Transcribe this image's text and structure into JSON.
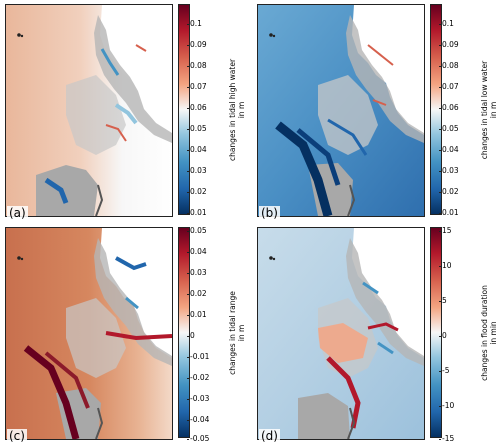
{
  "panels": [
    {
      "letter": "(a)",
      "colorbar_label_line1": "changes in tidal high water",
      "colorbar_label_line2": "in m",
      "ticks": [
        "0.1",
        "0.09",
        "0.08",
        "0.07",
        "0.06",
        "0.05",
        "0.04",
        "0.03",
        "0.02",
        "0.01"
      ],
      "tick_values": [
        0.1,
        0.09,
        0.08,
        0.07,
        0.06,
        0.05,
        0.04,
        0.03,
        0.02,
        0.01
      ],
      "range": [
        0.01,
        0.11
      ],
      "colormap": "diverging blue-white-red",
      "dominant_field": "orange-red offshore, white/blue nearshore"
    },
    {
      "letter": "(b)",
      "colorbar_label_line1": "changes in tidal low water",
      "colorbar_label_line2": "in m",
      "ticks": [
        "0.1",
        "0.09",
        "0.08",
        "0.07",
        "0.06",
        "0.05",
        "0.04",
        "0.03",
        "0.02",
        "0.01"
      ],
      "tick_values": [
        0.1,
        0.09,
        0.08,
        0.07,
        0.06,
        0.05,
        0.04,
        0.03,
        0.02,
        0.01
      ],
      "range": [
        0.01,
        0.11
      ],
      "colormap": "diverging blue-white-red",
      "dominant_field": "blue offshore, dark blue channels"
    },
    {
      "letter": "(c)",
      "colorbar_label_line1": "changes in tidal range",
      "colorbar_label_line2": "in m",
      "ticks": [
        "0.05",
        "0.04",
        "0.03",
        "0.02",
        "0.01",
        "0",
        "-0.01",
        "-0.02",
        "-0.03",
        "-0.04",
        "-0.05"
      ],
      "tick_values": [
        0.05,
        0.04,
        0.03,
        0.02,
        0.01,
        0,
        -0.01,
        -0.02,
        -0.03,
        -0.04,
        -0.05
      ],
      "range": [
        -0.05,
        0.05
      ],
      "colormap": "diverging blue-white-red",
      "dominant_field": "orange-red offshore, dark red channels"
    },
    {
      "letter": "(d)",
      "colorbar_label_line1": "changes in flood duration",
      "colorbar_label_line2": "in min",
      "ticks": [
        "15",
        "10",
        "5",
        "0",
        "-5",
        "-10",
        "-15"
      ],
      "tick_values": [
        15,
        10,
        5,
        0,
        -5,
        -10,
        -15
      ],
      "range": [
        -15,
        15
      ],
      "colormap": "diverging blue-white-red",
      "dominant_field": "light blue offshore, red channels"
    }
  ],
  "colors": {
    "deep_red": "#67001f",
    "red": "#b2182b",
    "orange": "#d6604d",
    "light_orange": "#f4a582",
    "white": "#f7f7f7",
    "light_blue": "#92c5de",
    "blue": "#4393c3",
    "deep_blue": "#053061",
    "land_grey": "#9a9a9a"
  }
}
